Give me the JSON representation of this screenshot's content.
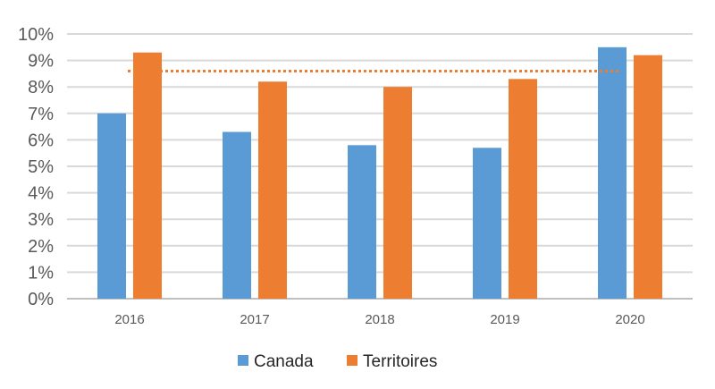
{
  "chart_data": {
    "type": "bar",
    "title": "",
    "xlabel": "",
    "ylabel": "",
    "categories": [
      "2016",
      "2017",
      "2018",
      "2019",
      "2020"
    ],
    "series": [
      {
        "name": "Canada",
        "color": "#5B9BD5",
        "values": [
          7.0,
          6.3,
          5.8,
          5.7,
          9.5
        ]
      },
      {
        "name": "Territoires",
        "color": "#ED7D31",
        "values": [
          9.3,
          8.2,
          8.0,
          8.3,
          9.2
        ]
      }
    ],
    "reference_line": {
      "value": 8.6,
      "color": "#ED7D31",
      "style": "dotted"
    },
    "ylim": [
      0,
      10
    ],
    "yticks": [
      "0%",
      "1%",
      "2%",
      "3%",
      "4%",
      "5%",
      "6%",
      "7%",
      "8%",
      "9%",
      "10%"
    ],
    "grid": true,
    "legend_position": "bottom"
  }
}
